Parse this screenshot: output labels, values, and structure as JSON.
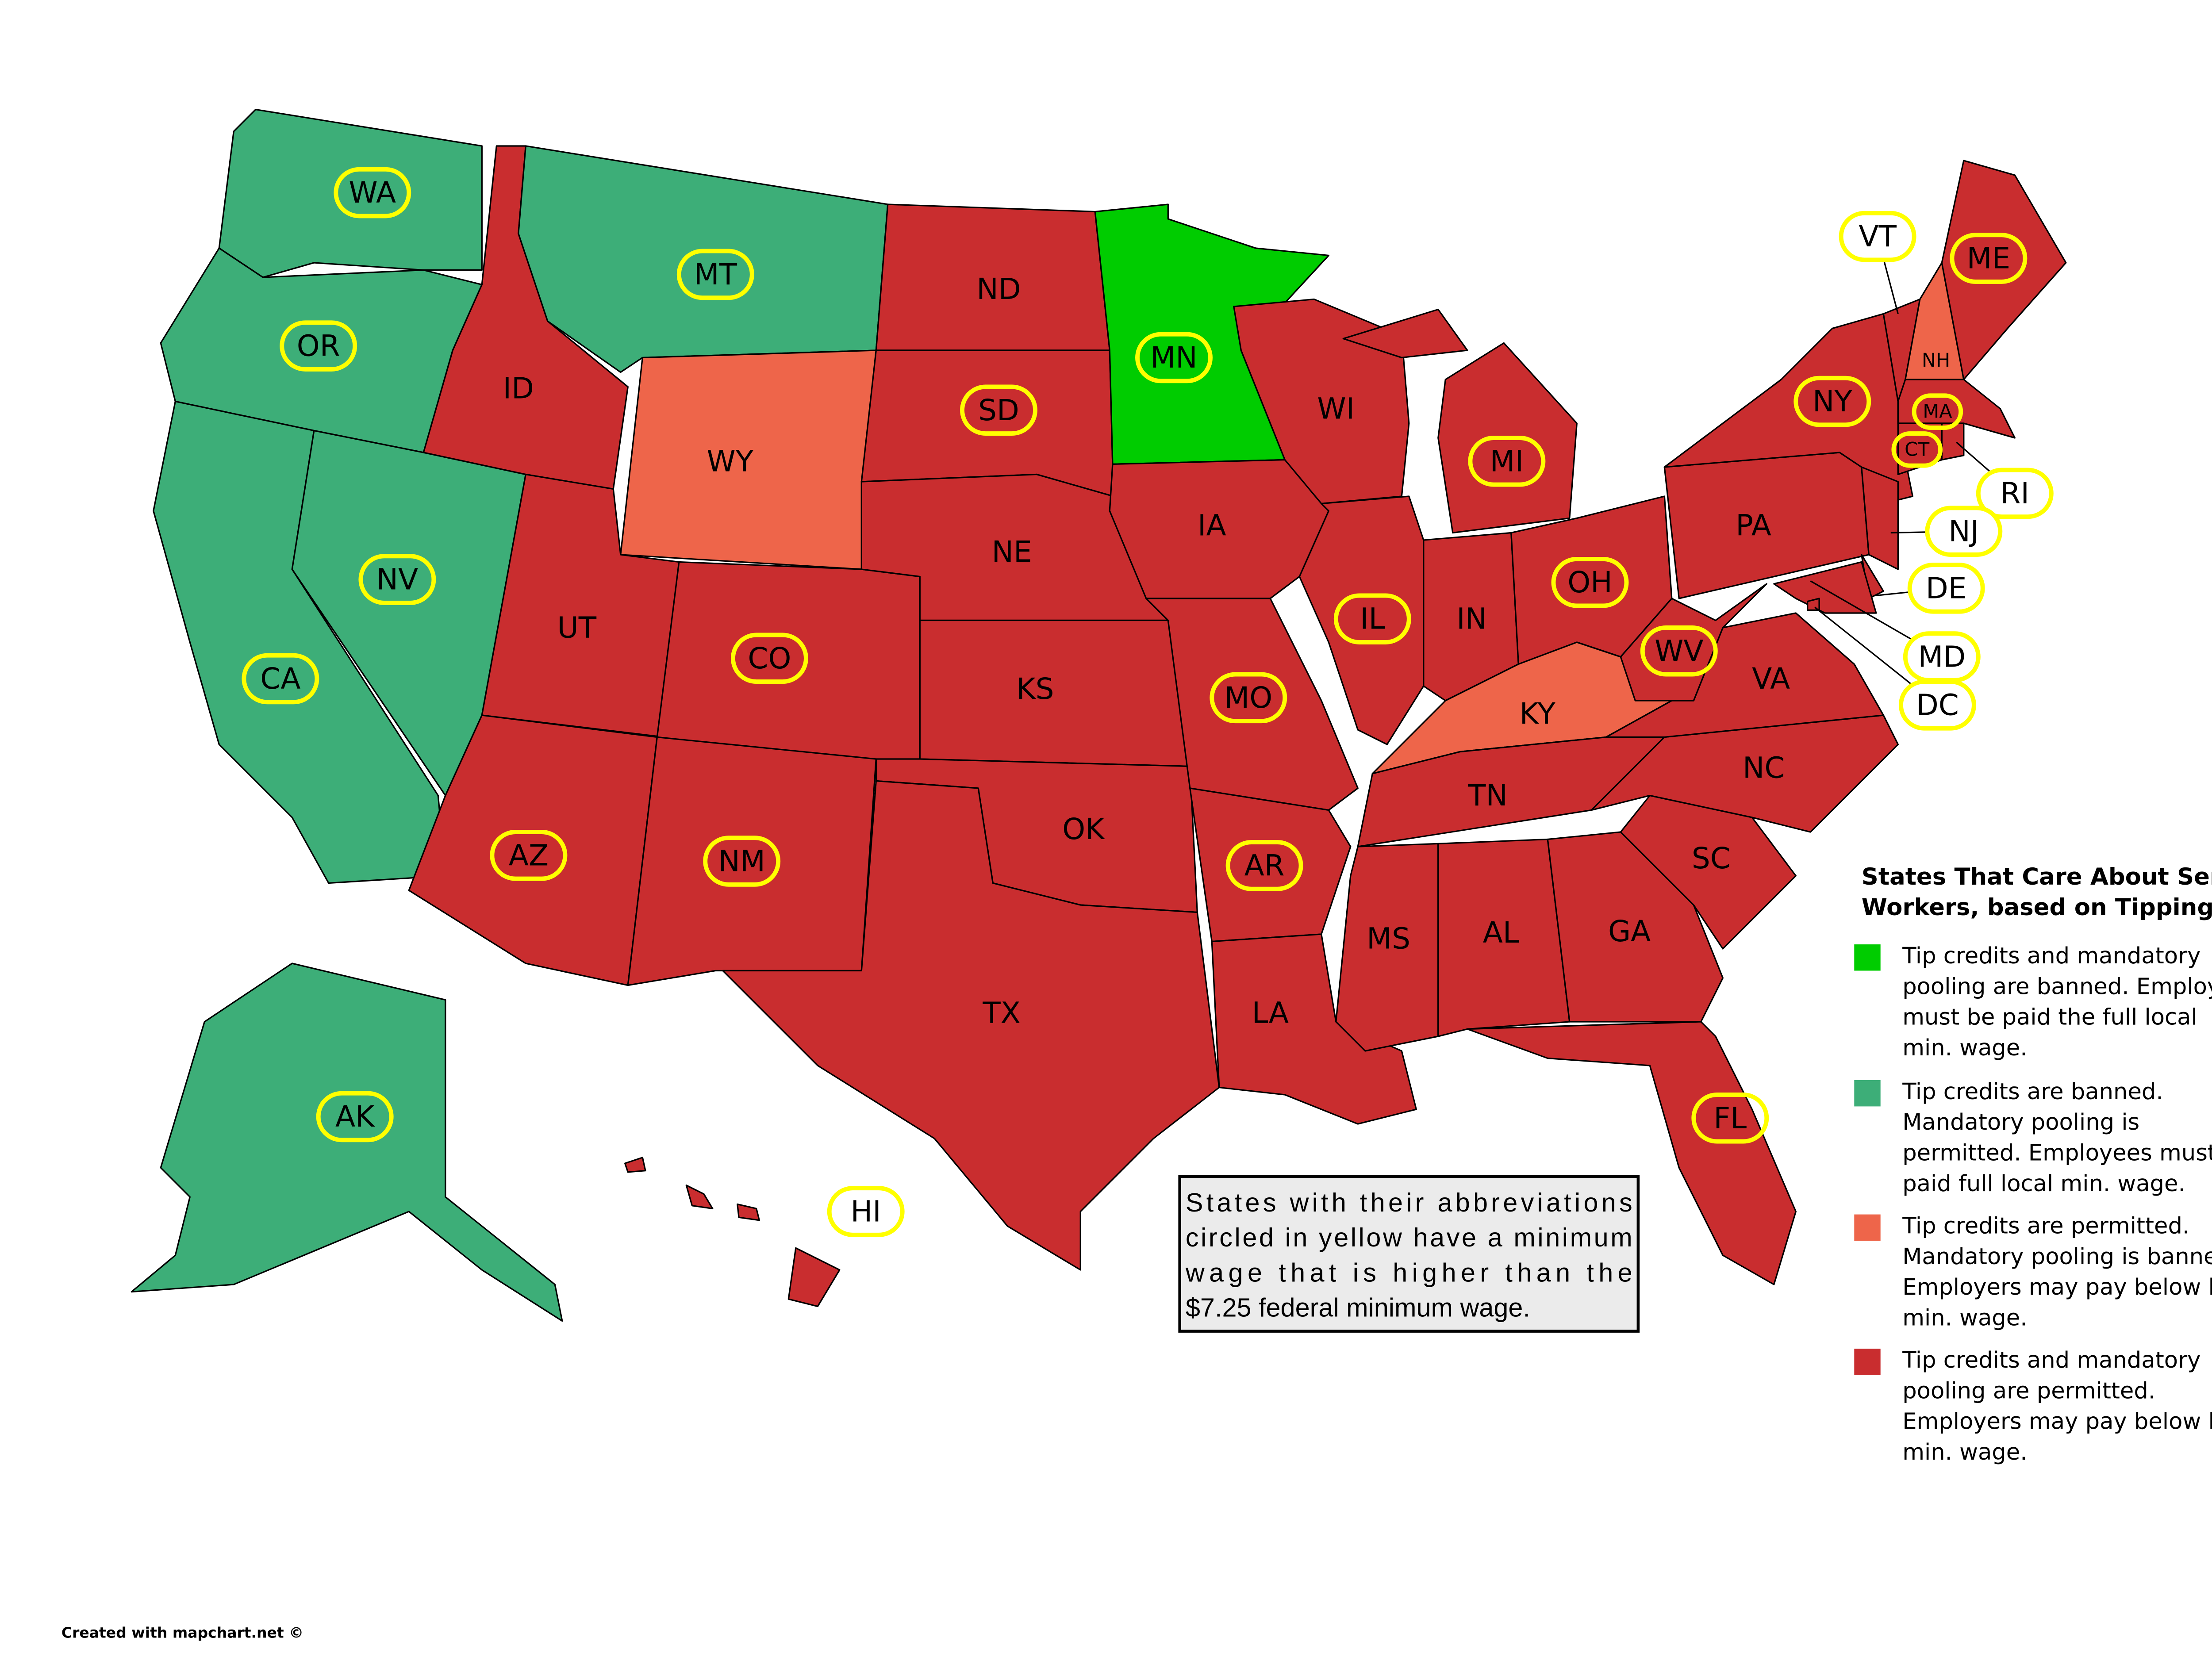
{
  "legend": {
    "title": [
      "States That Care About Service",
      "Workers, based on Tipping Law"
    ],
    "items": [
      {
        "color": "#00cc00",
        "lines": [
          "Tip credits and mandatory",
          "pooling are banned. Employees",
          "must be paid the full local",
          "min. wage."
        ]
      },
      {
        "color": "#3dae78",
        "lines": [
          "Tip credits are banned.",
          "Mandatory pooling is",
          "permitted. Employees must be",
          "paid full local min. wage."
        ]
      },
      {
        "color": "#ee654a",
        "lines": [
          "Tip credits are permitted.",
          "Mandatory pooling is banned.",
          "Employers may pay below local",
          "min. wage."
        ]
      },
      {
        "color": "#c92d2f",
        "lines": [
          "Tip credits and mandatory",
          "pooling are permitted.",
          "Employers may pay below local",
          "min. wage."
        ]
      }
    ]
  },
  "states": [
    {
      "label": "WA",
      "category": 1,
      "circled": true
    },
    {
      "label": "OR",
      "category": 1,
      "circled": true
    },
    {
      "label": "CA",
      "category": 1,
      "circled": true
    },
    {
      "label": "NV",
      "category": 1,
      "circled": true
    },
    {
      "label": "ID",
      "category": 3,
      "circled": false
    },
    {
      "label": "MT",
      "category": 1,
      "circled": true
    },
    {
      "label": "WY",
      "category": 2,
      "circled": false
    },
    {
      "label": "UT",
      "category": 3,
      "circled": false
    },
    {
      "label": "CO",
      "category": 3,
      "circled": true
    },
    {
      "label": "AZ",
      "category": 3,
      "circled": true
    },
    {
      "label": "NM",
      "category": 3,
      "circled": true
    },
    {
      "label": "ND",
      "category": 3,
      "circled": false
    },
    {
      "label": "SD",
      "category": 3,
      "circled": true
    },
    {
      "label": "NE",
      "category": 3,
      "circled": false
    },
    {
      "label": "KS",
      "category": 3,
      "circled": false
    },
    {
      "label": "OK",
      "category": 3,
      "circled": false
    },
    {
      "label": "TX",
      "category": 3,
      "circled": false
    },
    {
      "label": "MN",
      "category": 0,
      "circled": true
    },
    {
      "label": "IA",
      "category": 3,
      "circled": false
    },
    {
      "label": "MO",
      "category": 3,
      "circled": true
    },
    {
      "label": "AR",
      "category": 3,
      "circled": true
    },
    {
      "label": "LA",
      "category": 3,
      "circled": false
    },
    {
      "label": "WI",
      "category": 3,
      "circled": false
    },
    {
      "label": "IL",
      "category": 3,
      "circled": true
    },
    {
      "label": "MI",
      "category": 3,
      "circled": true
    },
    {
      "label": "IN",
      "category": 3,
      "circled": false
    },
    {
      "label": "OH",
      "category": 3,
      "circled": true
    },
    {
      "label": "KY",
      "category": 2,
      "circled": false
    },
    {
      "label": "TN",
      "category": 3,
      "circled": false
    },
    {
      "label": "MS",
      "category": 3,
      "circled": false
    },
    {
      "label": "AL",
      "category": 3,
      "circled": false
    },
    {
      "label": "GA",
      "category": 3,
      "circled": false
    },
    {
      "label": "FL",
      "category": 3,
      "circled": true
    },
    {
      "label": "SC",
      "category": 3,
      "circled": false
    },
    {
      "label": "NC",
      "category": 3,
      "circled": false
    },
    {
      "label": "VA",
      "category": 3,
      "circled": false
    },
    {
      "label": "WV",
      "category": 3,
      "circled": true
    },
    {
      "label": "PA",
      "category": 3,
      "circled": false
    },
    {
      "label": "NY",
      "category": 3,
      "circled": true
    },
    {
      "label": "VT",
      "category": 3,
      "circled": true
    },
    {
      "label": "NH",
      "category": 2,
      "circled": false
    },
    {
      "label": "ME",
      "category": 3,
      "circled": true
    },
    {
      "label": "MA",
      "category": 3,
      "circled": true
    },
    {
      "label": "CT",
      "category": 3,
      "circled": true
    },
    {
      "label": "RI",
      "category": 3,
      "circled": true
    },
    {
      "label": "NJ",
      "category": 3,
      "circled": true
    },
    {
      "label": "DE",
      "category": 3,
      "circled": true
    },
    {
      "label": "MD",
      "category": 3,
      "circled": true
    },
    {
      "label": "DC",
      "category": 3,
      "circled": true
    },
    {
      "label": "AK",
      "category": 1,
      "circled": true
    },
    {
      "label": "HI",
      "category": 3,
      "circled": true
    }
  ],
  "note": {
    "lines": [
      "States with their abbreviations",
      "circled in yellow have a minimum",
      "wage that is higher than the",
      "$7.25 federal minimum wage."
    ]
  },
  "credit": "Created with mapchart.net ©"
}
